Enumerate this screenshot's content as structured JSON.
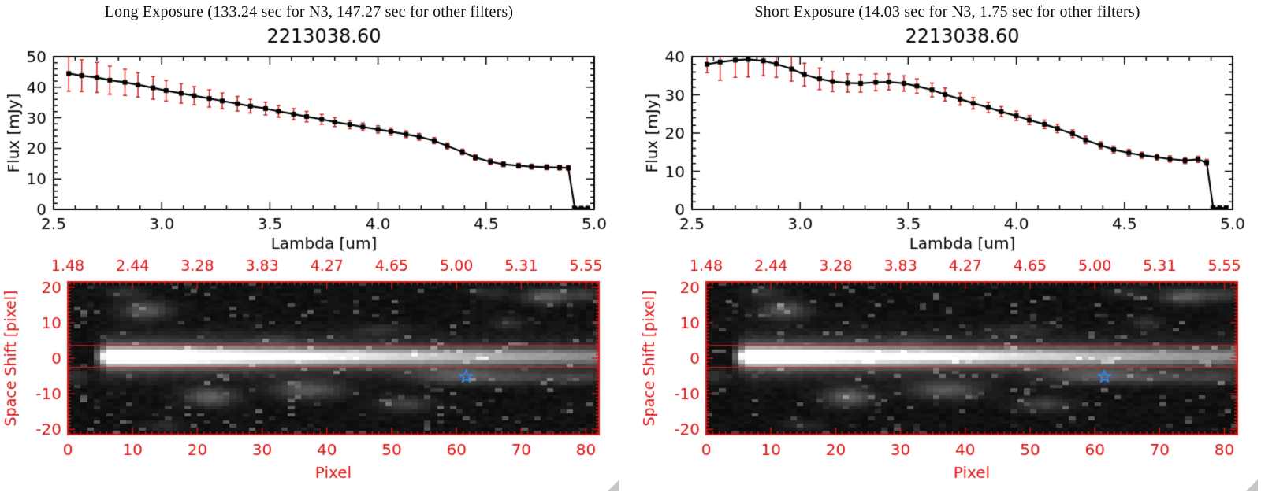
{
  "panels": [
    {
      "header": "Long Exposure (133.24 sec for N3, 147.27 sec for other filters)"
    },
    {
      "header": "Short Exposure (14.03 sec for N3, 1.75 sec for other filters)"
    }
  ],
  "chart_data": [
    {
      "panel": 0,
      "type": "line",
      "title": "2213038.60",
      "xlabel": "Lambda [um]",
      "ylabel": "Flux [mJy]",
      "xlim": [
        2.5,
        5.0
      ],
      "ylim": [
        0,
        50
      ],
      "xticks": [
        2.5,
        3.0,
        3.5,
        4.0,
        4.5,
        5.0
      ],
      "yticks": [
        0,
        10,
        20,
        30,
        40,
        50
      ],
      "line_color": "#000000",
      "error_color": "#cc2020",
      "marker": "square",
      "x": [
        2.57,
        2.63,
        2.7,
        2.76,
        2.83,
        2.89,
        2.96,
        3.02,
        3.09,
        3.15,
        3.22,
        3.28,
        3.35,
        3.41,
        3.48,
        3.54,
        3.61,
        3.67,
        3.74,
        3.8,
        3.87,
        3.93,
        4.0,
        4.06,
        4.13,
        4.19,
        4.26,
        4.32,
        4.39,
        4.45,
        4.52,
        4.58,
        4.65,
        4.71,
        4.78,
        4.84,
        4.88,
        4.91,
        4.94,
        4.97
      ],
      "flux": [
        44.5,
        43.8,
        43.2,
        42.3,
        41.6,
        40.8,
        39.8,
        38.9,
        38.0,
        37.2,
        36.3,
        35.5,
        34.6,
        33.8,
        33.0,
        32.1,
        31.2,
        30.4,
        29.5,
        28.6,
        27.8,
        27.0,
        26.2,
        25.5,
        24.6,
        23.8,
        22.5,
        20.8,
        18.8,
        17.0,
        15.6,
        14.8,
        14.3,
        14.0,
        13.8,
        13.7,
        13.6,
        0.4,
        0.4,
        0.4
      ],
      "flux_err": [
        5.8,
        5.2,
        4.9,
        4.6,
        4.3,
        4.0,
        3.7,
        3.4,
        3.2,
        3.0,
        2.8,
        2.6,
        2.4,
        2.2,
        2.1,
        1.9,
        1.8,
        1.7,
        1.6,
        1.5,
        1.4,
        1.3,
        1.2,
        1.2,
        1.1,
        1.1,
        1.0,
        1.0,
        0.9,
        0.9,
        0.9,
        0.8,
        0.8,
        0.8,
        0.8,
        0.8,
        0.8,
        0.3,
        0.3,
        0.3
      ]
    },
    {
      "panel": 0,
      "type": "heatmap",
      "xlabel": "Pixel",
      "ylabel": "Space Shift [pixel]",
      "axis_color": "#e01212",
      "aperture_color": "#e02020",
      "xlim": [
        0,
        82
      ],
      "ylim": [
        -21.5,
        21.5
      ],
      "xticks": [
        0,
        10,
        20,
        30,
        40,
        50,
        60,
        70,
        80
      ],
      "yticks": [
        -20,
        -10,
        0,
        10,
        20
      ],
      "top_tick_labels": [
        "1.48",
        "2.44",
        "3.28",
        "3.83",
        "4.27",
        "4.65",
        "5.00",
        "5.31",
        "5.55"
      ],
      "aperture_lines": [
        3.6,
        -2.6
      ],
      "star": {
        "x": 61.5,
        "y": -5.2,
        "color": "#2e8bff"
      },
      "trace": {
        "x_start": 4,
        "ramp_end": 6.5,
        "peak_x": 10,
        "peak_amp": 1.25,
        "decay": 60,
        "y_center": 0.5,
        "core_sigma": 1.5,
        "halo_sigma": 3.6,
        "halo_frac": 0.28
      },
      "noise": {
        "base": 0.03,
        "speckle_threshold": 0.93,
        "speckle_gain": 4.0,
        "seed": 1
      },
      "blobs": [
        [
          12,
          13.5,
          2.6,
          1.8,
          0.26
        ],
        [
          9,
          18.5,
          2.0,
          1.2,
          0.13
        ],
        [
          22,
          -11,
          2.6,
          1.8,
          0.3
        ],
        [
          37,
          -9,
          3.8,
          1.8,
          0.26
        ],
        [
          52,
          -13,
          3.0,
          1.5,
          0.18
        ],
        [
          60,
          -5,
          5.0,
          1.6,
          0.22
        ],
        [
          70,
          -5.5,
          5.0,
          1.3,
          0.15
        ],
        [
          79,
          -5.5,
          3.0,
          1.3,
          0.13
        ],
        [
          74,
          17.5,
          2.6,
          1.5,
          0.28
        ],
        [
          80,
          18,
          2.0,
          1.3,
          0.15
        ],
        [
          65,
          18.5,
          2.0,
          1.2,
          0.1
        ],
        [
          68,
          10,
          1.6,
          1.2,
          0.12
        ],
        [
          48,
          8,
          3.0,
          1.1,
          0.1
        ],
        [
          1,
          -5,
          1.6,
          1.6,
          0.13
        ],
        [
          32,
          5,
          2.2,
          1.1,
          0.08
        ],
        [
          15,
          -19,
          2.2,
          1.1,
          0.09
        ]
      ]
    },
    {
      "panel": 1,
      "type": "line",
      "title": "2213038.60",
      "xlabel": "Lambda [um]",
      "ylabel": "Flux [mJy]",
      "xlim": [
        2.5,
        5.0
      ],
      "ylim": [
        0,
        40
      ],
      "xticks": [
        2.5,
        3.0,
        3.5,
        4.0,
        4.5,
        5.0
      ],
      "yticks": [
        0,
        10,
        20,
        30,
        40
      ],
      "line_color": "#000000",
      "error_color": "#cc2020",
      "marker": "square",
      "x": [
        2.57,
        2.63,
        2.7,
        2.76,
        2.83,
        2.89,
        2.96,
        3.02,
        3.09,
        3.15,
        3.22,
        3.28,
        3.35,
        3.41,
        3.48,
        3.54,
        3.61,
        3.67,
        3.74,
        3.8,
        3.87,
        3.93,
        4.0,
        4.06,
        4.13,
        4.19,
        4.26,
        4.32,
        4.39,
        4.45,
        4.52,
        4.58,
        4.65,
        4.71,
        4.78,
        4.84,
        4.88,
        4.91,
        4.94,
        4.97
      ],
      "flux": [
        38.0,
        38.6,
        39.1,
        39.3,
        38.9,
        38.1,
        36.8,
        35.3,
        34.2,
        33.5,
        33.1,
        33.0,
        33.3,
        33.4,
        33.0,
        32.3,
        31.3,
        30.1,
        28.9,
        27.8,
        26.7,
        25.6,
        24.5,
        23.4,
        22.3,
        21.2,
        19.8,
        18.2,
        16.8,
        15.7,
        14.8,
        14.2,
        13.7,
        13.2,
        12.8,
        13.1,
        12.3,
        0.4,
        0.4,
        0.4
      ],
      "flux_err": [
        2.2,
        4.8,
        4.5,
        4.6,
        3.9,
        3.5,
        3.2,
        3.0,
        2.8,
        2.6,
        2.4,
        2.3,
        2.2,
        2.1,
        2.0,
        1.9,
        1.8,
        1.7,
        1.6,
        1.5,
        1.4,
        1.3,
        1.2,
        1.2,
        1.1,
        1.1,
        1.0,
        1.0,
        0.9,
        0.9,
        0.9,
        0.8,
        0.8,
        0.8,
        0.8,
        0.8,
        0.8,
        0.3,
        0.3,
        0.3
      ]
    },
    {
      "panel": 1,
      "type": "heatmap",
      "xlabel": "Pixel",
      "ylabel": "Space Shift [pixel]",
      "axis_color": "#e01212",
      "aperture_color": "#e02020",
      "xlim": [
        0,
        82
      ],
      "ylim": [
        -21.5,
        21.5
      ],
      "xticks": [
        0,
        10,
        20,
        30,
        40,
        50,
        60,
        70,
        80
      ],
      "yticks": [
        -20,
        -10,
        0,
        10,
        20
      ],
      "top_tick_labels": [
        "1.48",
        "2.44",
        "3.28",
        "3.83",
        "4.27",
        "4.65",
        "5.00",
        "5.31",
        "5.55"
      ],
      "aperture_lines": [
        3.6,
        -2.6
      ],
      "star": {
        "x": 61.5,
        "y": -5.2,
        "color": "#2e8bff"
      },
      "trace": {
        "x_start": 4,
        "ramp_end": 6.5,
        "peak_x": 10,
        "peak_amp": 1.25,
        "decay": 60,
        "y_center": 0.5,
        "core_sigma": 1.5,
        "halo_sigma": 3.6,
        "halo_frac": 0.28
      },
      "noise": {
        "base": 0.03,
        "speckle_threshold": 0.93,
        "speckle_gain": 4.0,
        "seed": 2
      },
      "blobs": [
        [
          12,
          13.5,
          2.6,
          1.8,
          0.26
        ],
        [
          9,
          18.5,
          2.0,
          1.2,
          0.13
        ],
        [
          22,
          -11,
          2.6,
          1.8,
          0.3
        ],
        [
          37,
          -9,
          3.8,
          1.8,
          0.26
        ],
        [
          52,
          -13,
          3.0,
          1.5,
          0.18
        ],
        [
          60,
          -5,
          5.0,
          1.6,
          0.22
        ],
        [
          70,
          -5.5,
          5.0,
          1.3,
          0.15
        ],
        [
          79,
          -5.5,
          3.0,
          1.3,
          0.13
        ],
        [
          74,
          17.5,
          2.6,
          1.5,
          0.28
        ],
        [
          80,
          18,
          2.0,
          1.3,
          0.15
        ],
        [
          65,
          18.5,
          2.0,
          1.2,
          0.1
        ],
        [
          68,
          10,
          1.6,
          1.2,
          0.12
        ],
        [
          48,
          8,
          3.0,
          1.1,
          0.1
        ],
        [
          1,
          -5,
          1.6,
          1.6,
          0.13
        ],
        [
          32,
          5,
          2.2,
          1.1,
          0.08
        ],
        [
          15,
          -19,
          2.2,
          1.1,
          0.09
        ]
      ]
    }
  ]
}
